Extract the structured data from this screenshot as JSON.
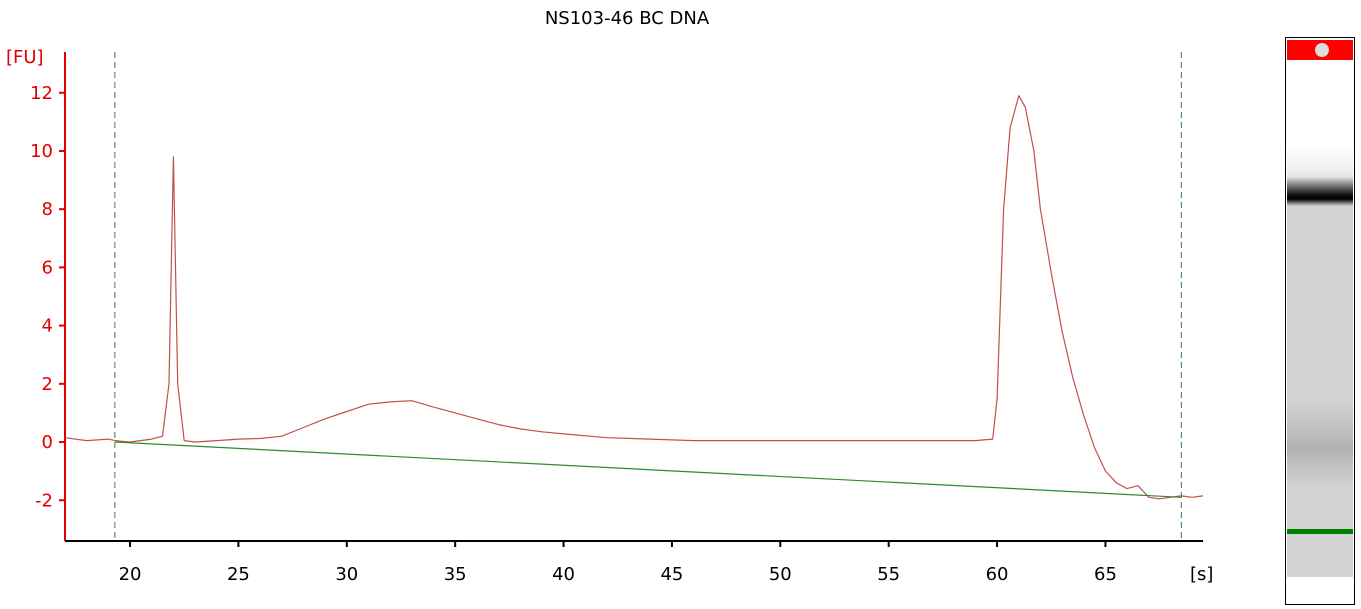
{
  "chart_data": {
    "type": "line",
    "title": "NS103-46 BC DNA",
    "ylabel": "[FU]",
    "xlabel": "[s]",
    "xlim": [
      17,
      69.5
    ],
    "ylim": [
      -3.4,
      13.4
    ],
    "xticks": [
      20,
      25,
      30,
      35,
      40,
      45,
      50,
      55,
      60,
      65
    ],
    "yticks": [
      -2,
      0,
      2,
      4,
      6,
      8,
      10,
      12
    ],
    "markers_vertical": [
      19.3,
      68.5
    ],
    "series": [
      {
        "x": [
          17,
          18,
          19,
          19.3,
          20,
          21,
          21.5,
          21.8,
          22,
          22.2,
          22.5,
          23,
          24,
          25,
          26,
          27,
          28,
          29,
          30,
          31,
          32,
          33,
          34,
          35,
          36,
          37,
          38,
          39,
          40,
          42,
          44,
          46,
          48,
          50,
          52,
          54,
          56,
          58,
          59,
          59.8,
          60,
          60.3,
          60.6,
          61,
          61.3,
          61.7,
          62,
          62.5,
          63,
          63.5,
          64,
          64.5,
          65,
          65.5,
          66,
          66.5,
          67,
          67.5,
          68,
          68.5,
          69,
          69.5
        ],
        "y": [
          0.15,
          0.05,
          0.1,
          0.05,
          0.0,
          0.1,
          0.2,
          2.0,
          9.8,
          2.0,
          0.05,
          0.0,
          0.05,
          0.1,
          0.12,
          0.2,
          0.5,
          0.8,
          1.05,
          1.3,
          1.38,
          1.42,
          1.2,
          1.0,
          0.8,
          0.6,
          0.45,
          0.35,
          0.28,
          0.15,
          0.1,
          0.05,
          0.05,
          0.05,
          0.05,
          0.05,
          0.05,
          0.05,
          0.05,
          0.1,
          1.5,
          8.0,
          10.8,
          11.9,
          11.5,
          10.0,
          8.0,
          5.8,
          3.8,
          2.2,
          0.9,
          -0.2,
          -1.0,
          -1.4,
          -1.6,
          -1.5,
          -1.9,
          -1.95,
          -1.9,
          -1.85,
          -1.9,
          -1.85
        ],
        "color": "#c0504d"
      },
      {
        "x": [
          19.3,
          68.5
        ],
        "y": [
          0.0,
          -1.9
        ],
        "color": "#2e8b2e"
      }
    ],
    "grid": false,
    "legend": false
  },
  "gel": {
    "marker_color": "#ff0000",
    "band_lower_color": "#008000"
  },
  "colors": {
    "axis_y": "#e00000",
    "axis_x": "#000000",
    "trace": "#c0504d",
    "baseline": "#2e8b2e",
    "marker_lines": "#3a7a3a"
  }
}
